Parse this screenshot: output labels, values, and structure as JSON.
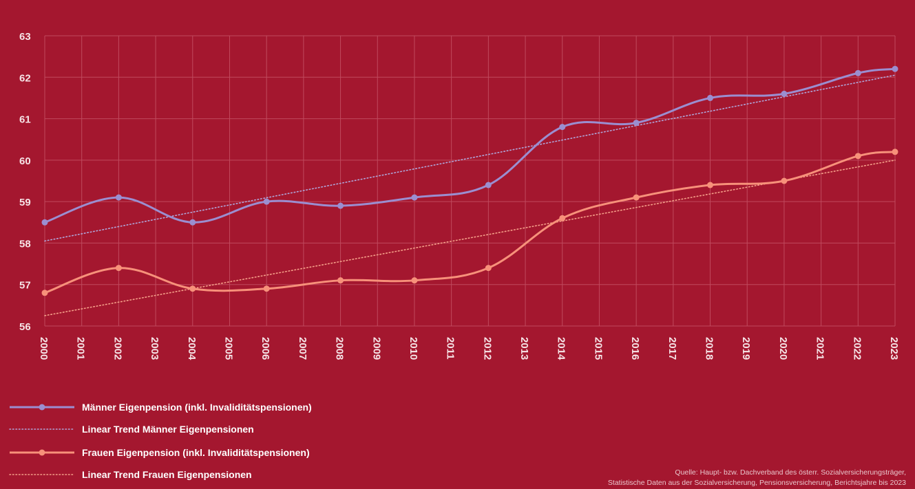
{
  "colors": {
    "background": "#a4172f",
    "grid": "#c04a5e",
    "men": "#9b8ed0",
    "women": "#f7917a",
    "men_trend": "#b0a6da",
    "women_trend": "#f5a089"
  },
  "chart_data": {
    "type": "line",
    "title": "",
    "xlabel": "",
    "ylabel": "",
    "x": [
      "2000",
      "2001",
      "2002",
      "2003",
      "2004",
      "2005",
      "2006",
      "2007",
      "2008",
      "2009",
      "2010",
      "2011",
      "2012",
      "2013",
      "2014",
      "2015",
      "2016",
      "2017",
      "2018",
      "2019",
      "2020",
      "2021",
      "2022",
      "2023"
    ],
    "ylim": [
      56,
      63
    ],
    "yticks": [
      "56",
      "57",
      "58",
      "59",
      "60",
      "61",
      "62",
      "63"
    ],
    "grid": true,
    "legend_position": "bottom-left",
    "series": [
      {
        "name": "Männer Eigenpension (inkl. Invaliditätspensionen)",
        "style": "solid",
        "color_key": "men",
        "points": [
          {
            "x": "2000",
            "y": 58.5
          },
          {
            "x": "2002",
            "y": 59.1
          },
          {
            "x": "2004",
            "y": 58.5
          },
          {
            "x": "2006",
            "y": 59.0
          },
          {
            "x": "2008",
            "y": 58.9
          },
          {
            "x": "2010",
            "y": 59.1
          },
          {
            "x": "2012",
            "y": 59.4
          },
          {
            "x": "2014",
            "y": 60.8
          },
          {
            "x": "2016",
            "y": 60.9
          },
          {
            "x": "2018",
            "y": 61.5
          },
          {
            "x": "2020",
            "y": 61.6
          },
          {
            "x": "2022",
            "y": 62.1
          },
          {
            "x": "2023",
            "y": 62.2
          }
        ]
      },
      {
        "name": "Linear Trend Männer Eigenpensionen",
        "style": "dotted",
        "color_key": "men_trend",
        "points": [
          {
            "x": "2000",
            "y": 58.05
          },
          {
            "x": "2023",
            "y": 62.05
          }
        ]
      },
      {
        "name": "Frauen Eigenpension (inkl. Invaliditätspensionen)",
        "style": "solid",
        "color_key": "women",
        "points": [
          {
            "x": "2000",
            "y": 56.8
          },
          {
            "x": "2002",
            "y": 57.4
          },
          {
            "x": "2004",
            "y": 56.9
          },
          {
            "x": "2006",
            "y": 56.9
          },
          {
            "x": "2008",
            "y": 57.1
          },
          {
            "x": "2010",
            "y": 57.1
          },
          {
            "x": "2012",
            "y": 57.4
          },
          {
            "x": "2014",
            "y": 58.6
          },
          {
            "x": "2016",
            "y": 59.1
          },
          {
            "x": "2018",
            "y": 59.4
          },
          {
            "x": "2020",
            "y": 59.5
          },
          {
            "x": "2022",
            "y": 60.1
          },
          {
            "x": "2023",
            "y": 60.2
          }
        ]
      },
      {
        "name": "Linear Trend Frauen Eigenpensionen",
        "style": "dotted",
        "color_key": "women_trend",
        "points": [
          {
            "x": "2000",
            "y": 56.25
          },
          {
            "x": "2023",
            "y": 60.0
          }
        ]
      }
    ],
    "source": [
      "Quelle: Haupt- bzw. Dachverband des österr. Sozialversicherungsträger,",
      "Statistische Daten aus der Sozialversicherung, Pensionsversicherung, Berichtsjahre bis 2023"
    ]
  }
}
